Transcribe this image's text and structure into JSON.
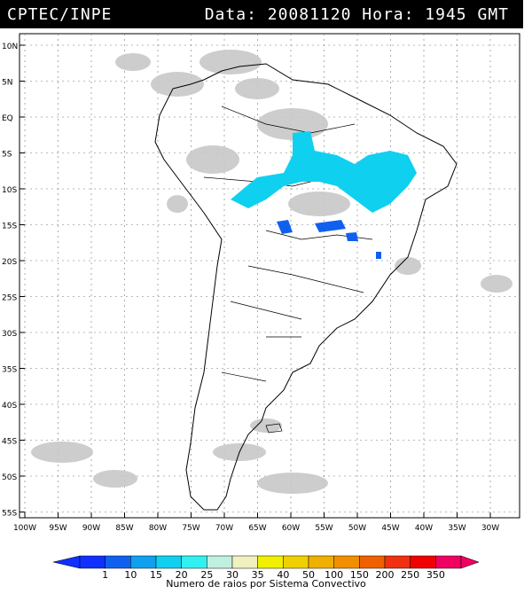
{
  "header": {
    "source": "CPTEC/INPE",
    "datetime": "Data: 20081120 Hora: 1945 GMT"
  },
  "map": {
    "region": "South America",
    "lat_labels": [
      "10N",
      "5N",
      "EQ",
      "5S",
      "10S",
      "15S",
      "20S",
      "25S",
      "30S",
      "35S",
      "40S",
      "45S",
      "50S",
      "55S"
    ],
    "lon_labels": [
      "100W",
      "95W",
      "90W",
      "85W",
      "80W",
      "75W",
      "70W",
      "65W",
      "60W",
      "55W",
      "50W",
      "45W",
      "40W",
      "35W",
      "30W"
    ],
    "grid": true,
    "layers": [
      "cloud-cover",
      "convective-systems",
      "country-borders",
      "state-borders"
    ]
  },
  "colorbar": {
    "ticks": [
      "1",
      "10",
      "15",
      "20",
      "25",
      "30",
      "35",
      "40",
      "50",
      "100",
      "150",
      "200",
      "250",
      "350"
    ],
    "colors": [
      "#1030ff",
      "#1060f0",
      "#10a0f0",
      "#10d0f0",
      "#30f0f0",
      "#c0f0e0",
      "#f0f0c0",
      "#f0f000",
      "#f0d000",
      "#f0b000",
      "#f09000",
      "#f06000",
      "#f03010",
      "#f00000",
      "#f00060"
    ],
    "label": "Numero de raios por Sistema Convectivo"
  }
}
